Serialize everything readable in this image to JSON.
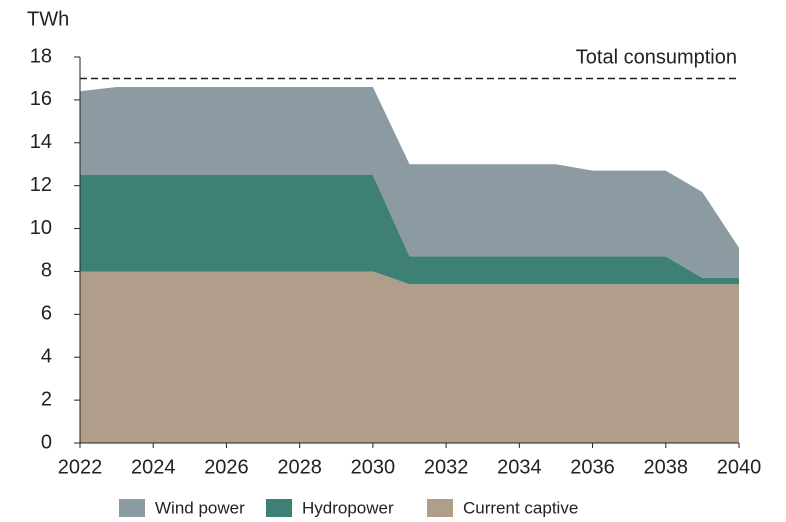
{
  "chart_data": {
    "type": "stacked_area",
    "y_label": "TWh",
    "x": [
      2022,
      2023,
      2024,
      2025,
      2026,
      2027,
      2028,
      2029,
      2030,
      2031,
      2032,
      2033,
      2034,
      2035,
      2036,
      2037,
      2038,
      2039,
      2040
    ],
    "series": [
      {
        "name": "Wind power",
        "color": "#8c9ba1",
        "values": [
          3.9,
          4.1,
          4.1,
          4.1,
          4.1,
          4.1,
          4.1,
          4.1,
          4.1,
          4.3,
          4.3,
          4.3,
          4.3,
          4.3,
          4.0,
          4.0,
          4.0,
          4.0,
          1.4
        ]
      },
      {
        "name": "Hydropower",
        "color": "#3e8174",
        "values": [
          4.5,
          4.5,
          4.5,
          4.5,
          4.5,
          4.5,
          4.5,
          4.5,
          4.5,
          1.3,
          1.3,
          1.3,
          1.3,
          1.3,
          1.3,
          1.3,
          1.3,
          0.3,
          0.3
        ]
      },
      {
        "name": "Current captive",
        "color": "#b09e8a",
        "values": [
          8,
          8,
          8,
          8,
          8,
          8,
          8,
          8,
          8,
          7.4,
          7.4,
          7.4,
          7.4,
          7.4,
          7.4,
          7.4,
          7.4,
          7.4,
          7.4
        ]
      }
    ],
    "reference": {
      "label": "Total consumption",
      "value": 17
    },
    "xlim": [
      2022,
      2040
    ],
    "xticks": [
      2022,
      2024,
      2026,
      2028,
      2030,
      2032,
      2034,
      2036,
      2038,
      2040
    ],
    "ylim": [
      0,
      18
    ],
    "yticks": [
      0,
      2,
      4,
      6,
      8,
      10,
      12,
      14,
      16,
      18
    ],
    "grid": false,
    "legend": "bottom"
  }
}
